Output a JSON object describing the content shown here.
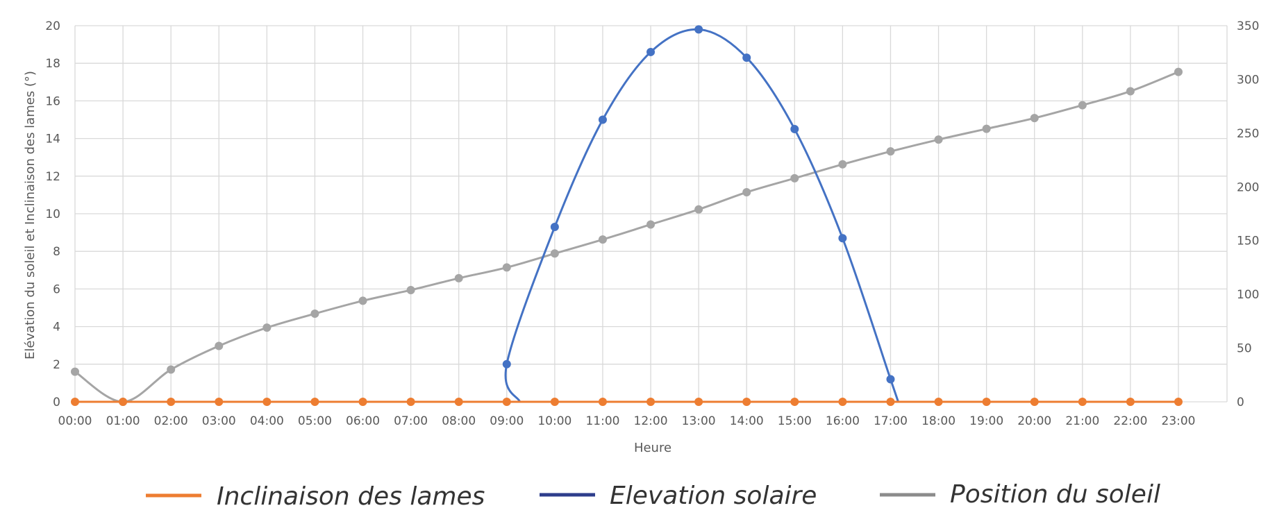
{
  "chart_data": {
    "type": "line",
    "title": "",
    "xlabel": "Heure",
    "ylabel": "Elévation du soleil et Inclinaison des lames (°)",
    "y2label": "",
    "categories": [
      "00:00",
      "01:00",
      "02:00",
      "03:00",
      "04:00",
      "05:00",
      "06:00",
      "07:00",
      "08:00",
      "09:00",
      "10:00",
      "11:00",
      "12:00",
      "13:00",
      "14:00",
      "15:00",
      "16:00",
      "17:00",
      "18:00",
      "19:00",
      "20:00",
      "21:00",
      "22:00",
      "23:00"
    ],
    "ylim": [
      0,
      20
    ],
    "y_ticks": [
      "0",
      "2",
      "4",
      "6",
      "8",
      "10",
      "12",
      "14",
      "16",
      "18",
      "20"
    ],
    "y2lim": [
      0,
      350
    ],
    "y2_ticks": [
      "0",
      "50",
      "100",
      "150",
      "200",
      "250",
      "300",
      "350"
    ],
    "grid": true,
    "legend_position": "bottom",
    "series": [
      {
        "name": "Inclinaison des lames",
        "axis": "left",
        "color": "#ED7D31",
        "values": [
          0,
          0,
          0,
          0,
          0,
          0,
          0,
          0,
          0,
          0,
          0,
          0,
          0,
          0,
          0,
          0,
          0,
          0,
          0,
          0,
          0,
          0,
          0,
          0
        ]
      },
      {
        "name": "Elevation solaire",
        "axis": "left",
        "color": "#4472C4",
        "values": [
          null,
          null,
          null,
          null,
          null,
          null,
          null,
          null,
          null,
          2.0,
          9.3,
          15.0,
          18.6,
          19.8,
          18.3,
          14.5,
          8.7,
          1.2,
          null,
          null,
          null,
          null,
          null,
          null
        ]
      },
      {
        "name": "Position du soleil",
        "axis": "right",
        "color": "#A5A5A5",
        "values": [
          28,
          0,
          30,
          52,
          69,
          82,
          94,
          104,
          115,
          125,
          138,
          151,
          165,
          179,
          195,
          208,
          221,
          233,
          244,
          254,
          264,
          276,
          289,
          307
        ]
      }
    ],
    "legend": [
      {
        "label": "Inclinaison des lames",
        "color": "#ED7D31"
      },
      {
        "label": "Elevation solaire",
        "color": "#2E3E8C"
      },
      {
        "label": "Position du soleil",
        "color": "#8C8C8C"
      }
    ]
  }
}
